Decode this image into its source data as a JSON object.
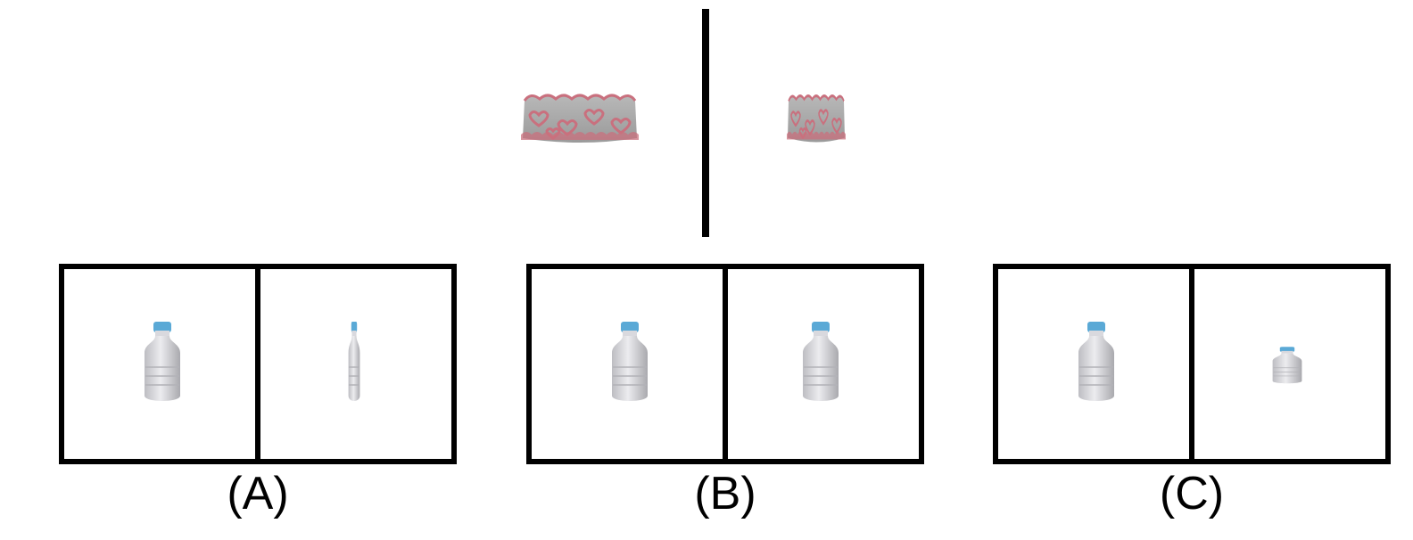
{
  "reference": {
    "left_object": "cake-normal",
    "right_object": "cake-squashed"
  },
  "options": [
    {
      "id": "A",
      "label": "(A)",
      "left_object": "bottle-normal",
      "right_object": "bottle-thin"
    },
    {
      "id": "B",
      "label": "(B)",
      "left_object": "bottle-normal",
      "right_object": "bottle-normal"
    },
    {
      "id": "C",
      "label": "(C)",
      "left_object": "bottle-normal",
      "right_object": "bottle-short"
    }
  ],
  "colors": {
    "cake_body": "#a8a8a8",
    "cake_hearts": "#c9707e",
    "bottle_body": "#d8d8dc",
    "bottle_cap": "#5aa9d6",
    "frame": "#000000"
  }
}
